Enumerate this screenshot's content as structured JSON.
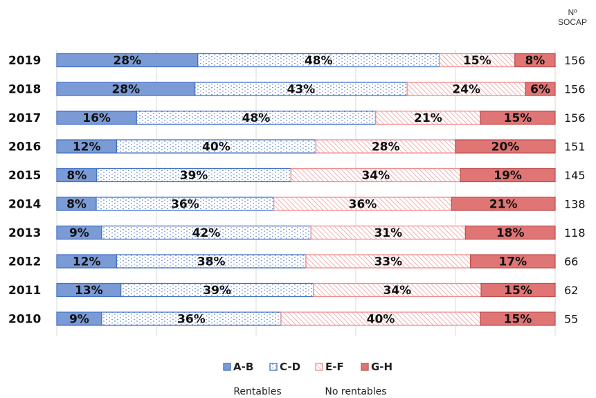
{
  "chart_data": {
    "type": "bar",
    "orientation": "horizontal",
    "stacked": "percent",
    "categories": [
      "2019",
      "2018",
      "2017",
      "2016",
      "2015",
      "2014",
      "2013",
      "2012",
      "2011",
      "2010"
    ],
    "series": [
      {
        "name": "A-B",
        "values": [
          28,
          28,
          16,
          12,
          8,
          8,
          9,
          12,
          13,
          9
        ],
        "color": "#7b9bd6"
      },
      {
        "name": "C-D",
        "values": [
          48,
          43,
          48,
          40,
          39,
          36,
          42,
          38,
          39,
          36
        ],
        "color": "#4472c4"
      },
      {
        "name": "E-F",
        "values": [
          15,
          24,
          21,
          28,
          34,
          36,
          31,
          33,
          34,
          40
        ],
        "color": "#f08c8c"
      },
      {
        "name": "G-H",
        "values": [
          8,
          6,
          15,
          20,
          19,
          21,
          18,
          17,
          15,
          15
        ],
        "color": "#e07575"
      }
    ],
    "counts_header": [
      "Nº",
      "SOCAP"
    ],
    "counts": [
      156,
      156,
      156,
      151,
      145,
      138,
      118,
      66,
      62,
      55
    ],
    "group_labels": [
      "Rentables",
      "No rentables"
    ],
    "xlim": [
      0,
      100
    ],
    "grid": "vertical",
    "legend_position": "bottom"
  }
}
